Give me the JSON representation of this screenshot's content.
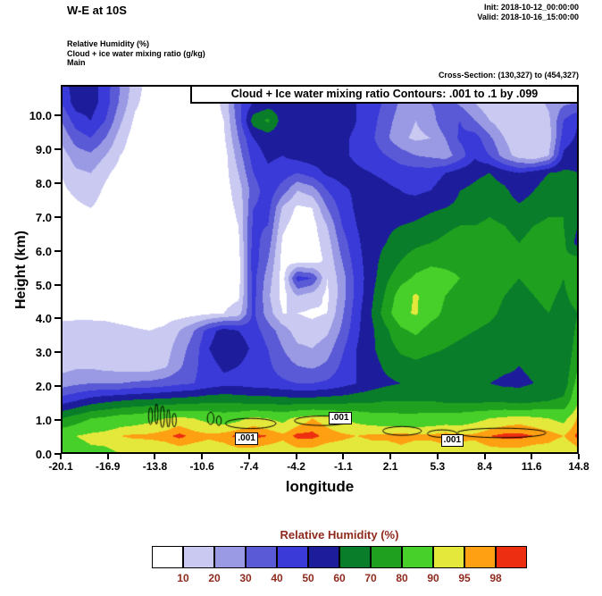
{
  "header": {
    "title": "W-E at 10S",
    "init": "Init: 2018-10-12_00:00:00",
    "valid": "Valid: 2018-10-16_15:00:00",
    "field_lines": [
      "Relative Humidity  (%)",
      "Cloud + ice water mixing ratio  (g/kg)",
      "Main"
    ],
    "cross_section": "Cross-Section: (130,327) to (454,327)"
  },
  "plot": {
    "banner": "Cloud + Ice water mixing ratio Contours: .001 to .1 by .099",
    "xlabel": "longitude",
    "ylabel": "Height (km)",
    "x_ticks": [
      "-20.1",
      "-16.9",
      "-13.8",
      "-10.6",
      "-7.4",
      "-4.2",
      "-1.1",
      "2.1",
      "5.3",
      "8.4",
      "11.6",
      "14.8"
    ],
    "y_ticks": [
      "0.0",
      "1.0",
      "2.0",
      "3.0",
      "4.0",
      "5.0",
      "6.0",
      "7.0",
      "8.0",
      "9.0",
      "10.0"
    ]
  },
  "legend": {
    "title": "Relative Humidity  (%)",
    "labels": [
      "10",
      "20",
      "30",
      "40",
      "50",
      "60",
      "70",
      "80",
      "90",
      "95",
      "98"
    ],
    "label_color": "#8f2a1e"
  },
  "chart_data": {
    "type": "heatmap",
    "title": "W-E at 10S vertical cross-section of Relative Humidity (%) with Cloud + Ice water mixing ratio contours .001 to .1 by .099",
    "xlabel": "longitude",
    "ylabel": "Height (km)",
    "x_range": [
      -20.1,
      14.8
    ],
    "y_range": [
      0,
      10.9
    ],
    "levels": [
      10,
      20,
      30,
      40,
      50,
      60,
      70,
      80,
      90,
      95,
      98
    ],
    "palette": [
      "#ffffff",
      "#c9c9f2",
      "#9a9ae4",
      "#5a5ad6",
      "#3a3ad8",
      "#1d1d9c",
      "#0a7d2a",
      "#1fa11f",
      "#47cf2a",
      "#e4e83a",
      "#ffa013",
      "#ee2e10"
    ],
    "grid_note": "rh_grid rows top-down from 10.9 km to 0 km, columns left-right from lon -20.1 to 14.8",
    "rh_grid": [
      [
        45,
        55,
        55,
        45,
        30,
        15,
        5,
        5,
        5,
        5,
        5,
        15,
        40,
        50,
        55,
        55,
        58,
        58,
        58,
        56,
        52,
        48,
        40,
        30,
        25,
        35,
        30,
        22,
        14,
        10,
        10,
        12,
        18,
        22,
        25,
        28
      ],
      [
        40,
        55,
        55,
        45,
        28,
        12,
        5,
        5,
        5,
        5,
        5,
        12,
        38,
        50,
        54,
        56,
        58,
        58,
        58,
        55,
        50,
        45,
        38,
        28,
        22,
        30,
        35,
        28,
        20,
        12,
        10,
        10,
        15,
        22,
        28,
        30
      ],
      [
        30,
        45,
        50,
        40,
        22,
        8,
        5,
        5,
        5,
        5,
        5,
        10,
        35,
        65,
        72,
        55,
        56,
        58,
        57,
        55,
        50,
        44,
        34,
        25,
        20,
        25,
        38,
        40,
        30,
        20,
        12,
        10,
        10,
        18,
        40,
        50
      ],
      [
        22,
        35,
        40,
        30,
        15,
        5,
        5,
        5,
        5,
        5,
        5,
        8,
        30,
        50,
        55,
        54,
        56,
        58,
        56,
        52,
        48,
        42,
        32,
        22,
        18,
        20,
        30,
        42,
        45,
        32,
        20,
        12,
        10,
        15,
        45,
        52
      ],
      [
        15,
        25,
        28,
        20,
        10,
        5,
        5,
        5,
        5,
        5,
        5,
        5,
        25,
        45,
        52,
        50,
        54,
        56,
        55,
        52,
        48,
        45,
        40,
        35,
        30,
        28,
        25,
        35,
        48,
        40,
        25,
        15,
        10,
        20,
        52,
        56
      ],
      [
        10,
        18,
        20,
        12,
        6,
        5,
        5,
        5,
        5,
        5,
        5,
        5,
        20,
        40,
        48,
        45,
        40,
        45,
        52,
        54,
        52,
        50,
        48,
        45,
        45,
        45,
        50,
        55,
        58,
        60,
        55,
        50,
        55,
        60,
        62,
        60
      ],
      [
        8,
        12,
        15,
        8,
        5,
        5,
        5,
        5,
        5,
        5,
        5,
        5,
        15,
        35,
        46,
        35,
        20,
        25,
        40,
        48,
        52,
        54,
        52,
        50,
        48,
        50,
        55,
        60,
        62,
        65,
        62,
        55,
        60,
        65,
        68,
        65
      ],
      [
        5,
        8,
        10,
        6,
        5,
        5,
        5,
        5,
        5,
        5,
        5,
        5,
        12,
        40,
        44,
        18,
        8,
        10,
        30,
        44,
        52,
        56,
        55,
        52,
        55,
        58,
        60,
        62,
        65,
        68,
        65,
        62,
        65,
        68,
        70,
        65
      ],
      [
        5,
        6,
        8,
        5,
        5,
        5,
        5,
        5,
        5,
        5,
        5,
        5,
        10,
        42,
        40,
        12,
        5,
        6,
        20,
        40,
        50,
        56,
        58,
        60,
        62,
        65,
        68,
        70,
        70,
        72,
        70,
        68,
        70,
        72,
        70,
        60
      ],
      [
        5,
        5,
        6,
        5,
        5,
        5,
        5,
        5,
        5,
        5,
        5,
        5,
        8,
        44,
        35,
        8,
        5,
        5,
        15,
        35,
        48,
        56,
        60,
        65,
        68,
        70,
        72,
        75,
        75,
        75,
        72,
        70,
        72,
        75,
        72,
        55
      ],
      [
        5,
        5,
        5,
        5,
        5,
        5,
        5,
        5,
        5,
        5,
        5,
        5,
        6,
        46,
        30,
        6,
        5,
        5,
        12,
        30,
        46,
        56,
        64,
        70,
        75,
        78,
        78,
        78,
        76,
        74,
        72,
        70,
        72,
        75,
        72,
        75
      ],
      [
        5,
        5,
        5,
        5,
        5,
        5,
        5,
        5,
        5,
        5,
        5,
        5,
        6,
        44,
        25,
        6,
        45,
        40,
        10,
        25,
        44,
        56,
        68,
        76,
        82,
        84,
        82,
        80,
        78,
        75,
        72,
        70,
        72,
        75,
        70,
        80
      ],
      [
        5,
        5,
        5,
        5,
        5,
        5,
        5,
        5,
        5,
        5,
        5,
        6,
        8,
        44,
        22,
        6,
        20,
        15,
        8,
        25,
        44,
        58,
        72,
        86,
        91,
        86,
        80,
        78,
        76,
        74,
        70,
        68,
        70,
        72,
        68,
        75
      ],
      [
        6,
        6,
        6,
        6,
        5,
        5,
        5,
        5,
        5,
        6,
        8,
        10,
        15,
        42,
        25,
        10,
        10,
        8,
        10,
        28,
        46,
        60,
        76,
        88,
        91,
        84,
        78,
        76,
        74,
        72,
        68,
        66,
        68,
        70,
        66,
        70
      ],
      [
        15,
        16,
        16,
        15,
        13,
        11,
        10,
        12,
        20,
        30,
        45,
        55,
        50,
        45,
        35,
        25,
        15,
        14,
        18,
        32,
        48,
        58,
        68,
        78,
        82,
        76,
        74,
        72,
        70,
        68,
        66,
        64,
        66,
        68,
        64,
        72
      ],
      [
        18,
        20,
        20,
        18,
        16,
        14,
        12,
        15,
        25,
        35,
        50,
        58,
        55,
        48,
        40,
        30,
        22,
        20,
        25,
        38,
        50,
        58,
        66,
        72,
        74,
        72,
        70,
        68,
        66,
        66,
        64,
        62,
        64,
        66,
        62,
        75
      ],
      [
        16,
        18,
        18,
        16,
        15,
        14,
        14,
        18,
        28,
        38,
        46,
        52,
        50,
        46,
        42,
        35,
        30,
        28,
        32,
        42,
        50,
        56,
        62,
        66,
        68,
        66,
        66,
        64,
        64,
        64,
        62,
        60,
        62,
        64,
        62,
        80
      ],
      [
        25,
        28,
        30,
        30,
        30,
        32,
        33,
        35,
        38,
        40,
        44,
        47,
        47,
        45,
        44,
        42,
        40,
        40,
        42,
        46,
        50,
        55,
        58,
        60,
        62,
        62,
        60,
        60,
        60,
        60,
        58,
        58,
        60,
        62,
        64,
        85
      ],
      [
        45,
        50,
        55,
        58,
        60,
        62,
        63,
        64,
        65,
        66,
        68,
        68,
        67,
        66,
        66,
        65,
        65,
        65,
        66,
        66,
        68,
        68,
        70,
        70,
        70,
        70,
        68,
        68,
        68,
        68,
        68,
        66,
        68,
        70,
        72,
        90
      ],
      [
        70,
        75,
        80,
        82,
        85,
        86,
        88,
        90,
        92,
        90,
        88,
        86,
        88,
        92,
        90,
        88,
        92,
        95,
        93,
        90,
        88,
        86,
        85,
        84,
        84,
        85,
        86,
        86,
        88,
        90,
        92,
        93,
        92,
        90,
        88,
        96
      ],
      [
        88,
        90,
        92,
        93,
        95,
        96,
        96,
        97,
        99,
        97,
        96,
        97,
        99,
        99,
        98,
        96,
        99,
        99,
        97,
        96,
        95,
        96,
        96,
        97,
        96,
        96,
        97,
        96,
        96,
        98,
        99,
        99,
        98,
        97,
        95,
        99
      ],
      [
        85,
        86,
        88,
        88,
        90,
        90,
        91,
        91,
        92,
        92,
        91,
        92,
        93,
        93,
        92,
        92,
        93,
        93,
        92,
        92,
        91,
        92,
        92,
        93,
        92,
        92,
        93,
        93,
        92,
        93,
        93,
        93,
        92,
        92,
        90,
        93
      ]
    ],
    "cloud_contours": {
      "contour_label": ".001",
      "ellipses": [
        {
          "lon": -14.05,
          "km": 1.12,
          "rx": 0.13,
          "ry": 0.25
        },
        {
          "lon": -13.65,
          "km": 1.18,
          "rx": 0.1,
          "ry": 0.3
        },
        {
          "lon": -13.25,
          "km": 1.1,
          "rx": 0.13,
          "ry": 0.32
        },
        {
          "lon": -12.85,
          "km": 1.05,
          "rx": 0.1,
          "ry": 0.26
        },
        {
          "lon": -12.45,
          "km": 1.0,
          "rx": 0.13,
          "ry": 0.2
        },
        {
          "lon": -10.0,
          "km": 1.05,
          "rx": 0.22,
          "ry": 0.18
        },
        {
          "lon": -9.45,
          "km": 0.98,
          "rx": 0.16,
          "ry": 0.14
        },
        {
          "lon": -7.3,
          "km": 0.9,
          "rx": 1.7,
          "ry": 0.15
        },
        {
          "lon": -2.5,
          "km": 0.98,
          "rx": 1.85,
          "ry": 0.14
        },
        {
          "lon": 2.9,
          "km": 0.68,
          "rx": 1.3,
          "ry": 0.13
        },
        {
          "lon": 5.6,
          "km": 0.6,
          "rx": 1.0,
          "ry": 0.11
        },
        {
          "lon": 9.6,
          "km": 0.62,
          "rx": 3.0,
          "ry": 0.14
        }
      ],
      "label_boxes": [
        {
          "lon": -7.5,
          "km": 0.45
        },
        {
          "lon": -1.2,
          "km": 1.05
        },
        {
          "lon": 6.35,
          "km": 0.4
        }
      ]
    }
  }
}
